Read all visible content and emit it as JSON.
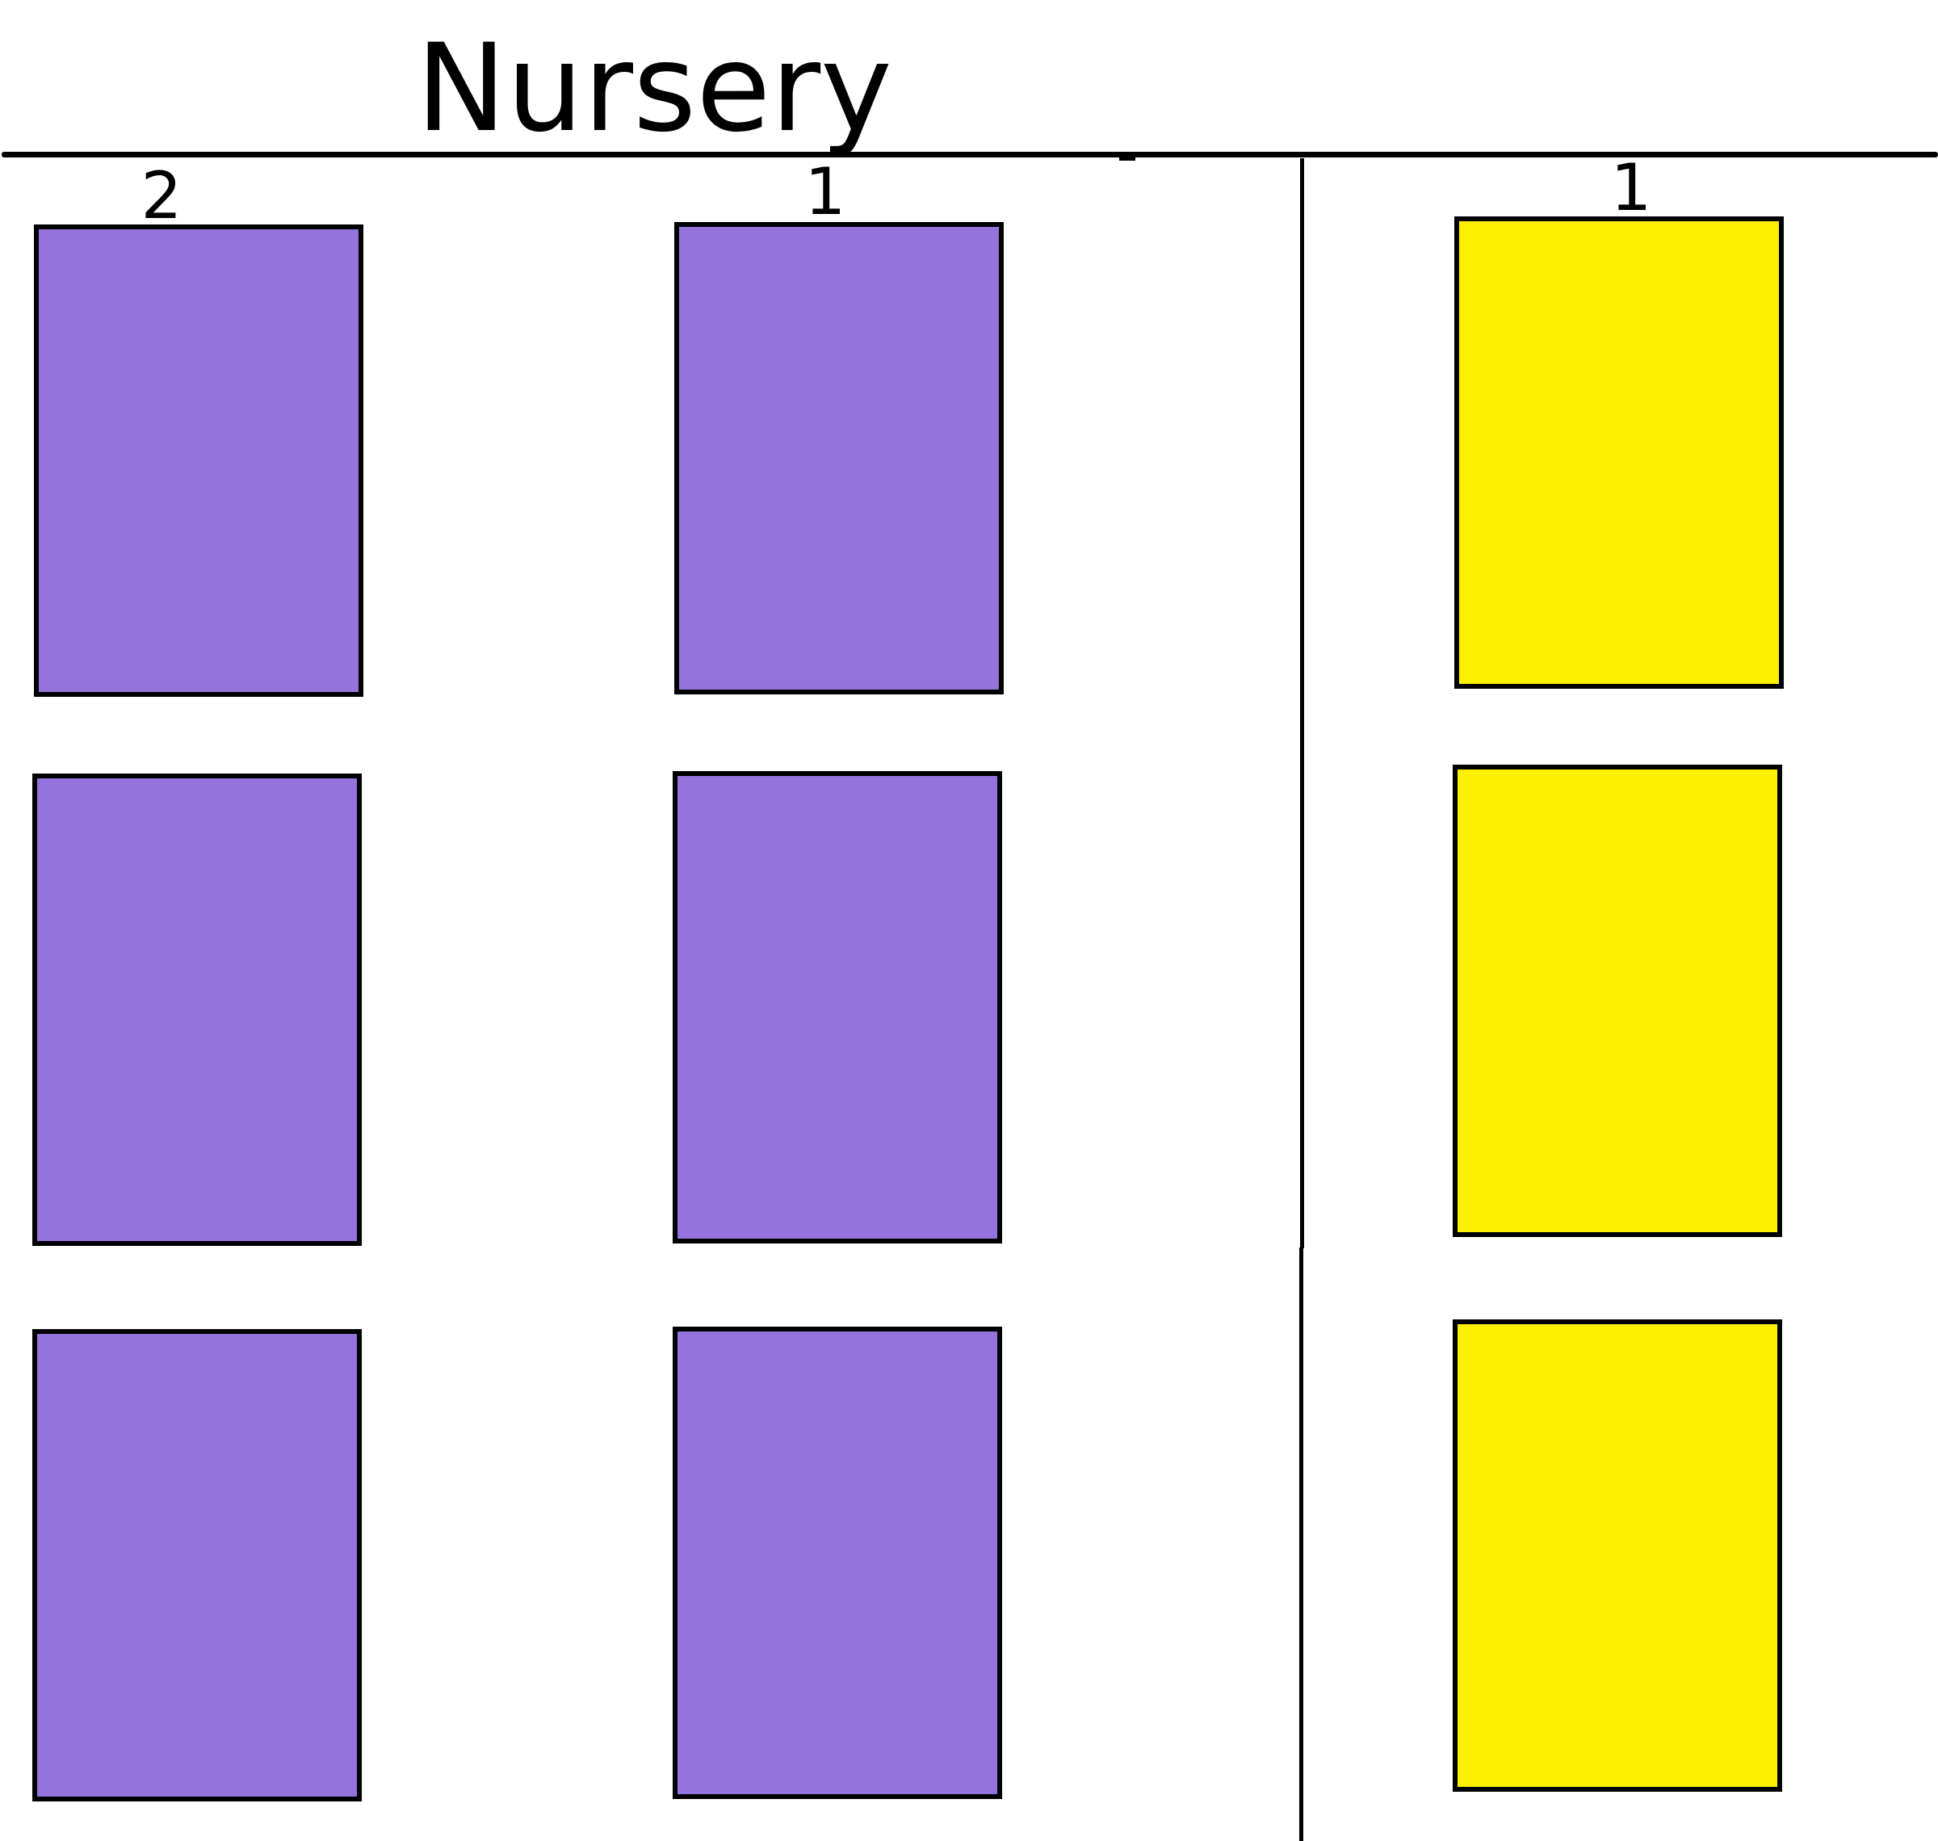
{
  "title": "Nursery",
  "columns": [
    {
      "label": "2",
      "card_color": "#9473DC",
      "card_count": 3
    },
    {
      "label": "1",
      "card_color": "#9473DC",
      "card_count": 3
    },
    {
      "label": "1",
      "card_color": "#FEF000",
      "card_count": 3
    }
  ],
  "colors": {
    "purple": "#9473DC",
    "yellow": "#FEF000",
    "line": "#000000"
  }
}
